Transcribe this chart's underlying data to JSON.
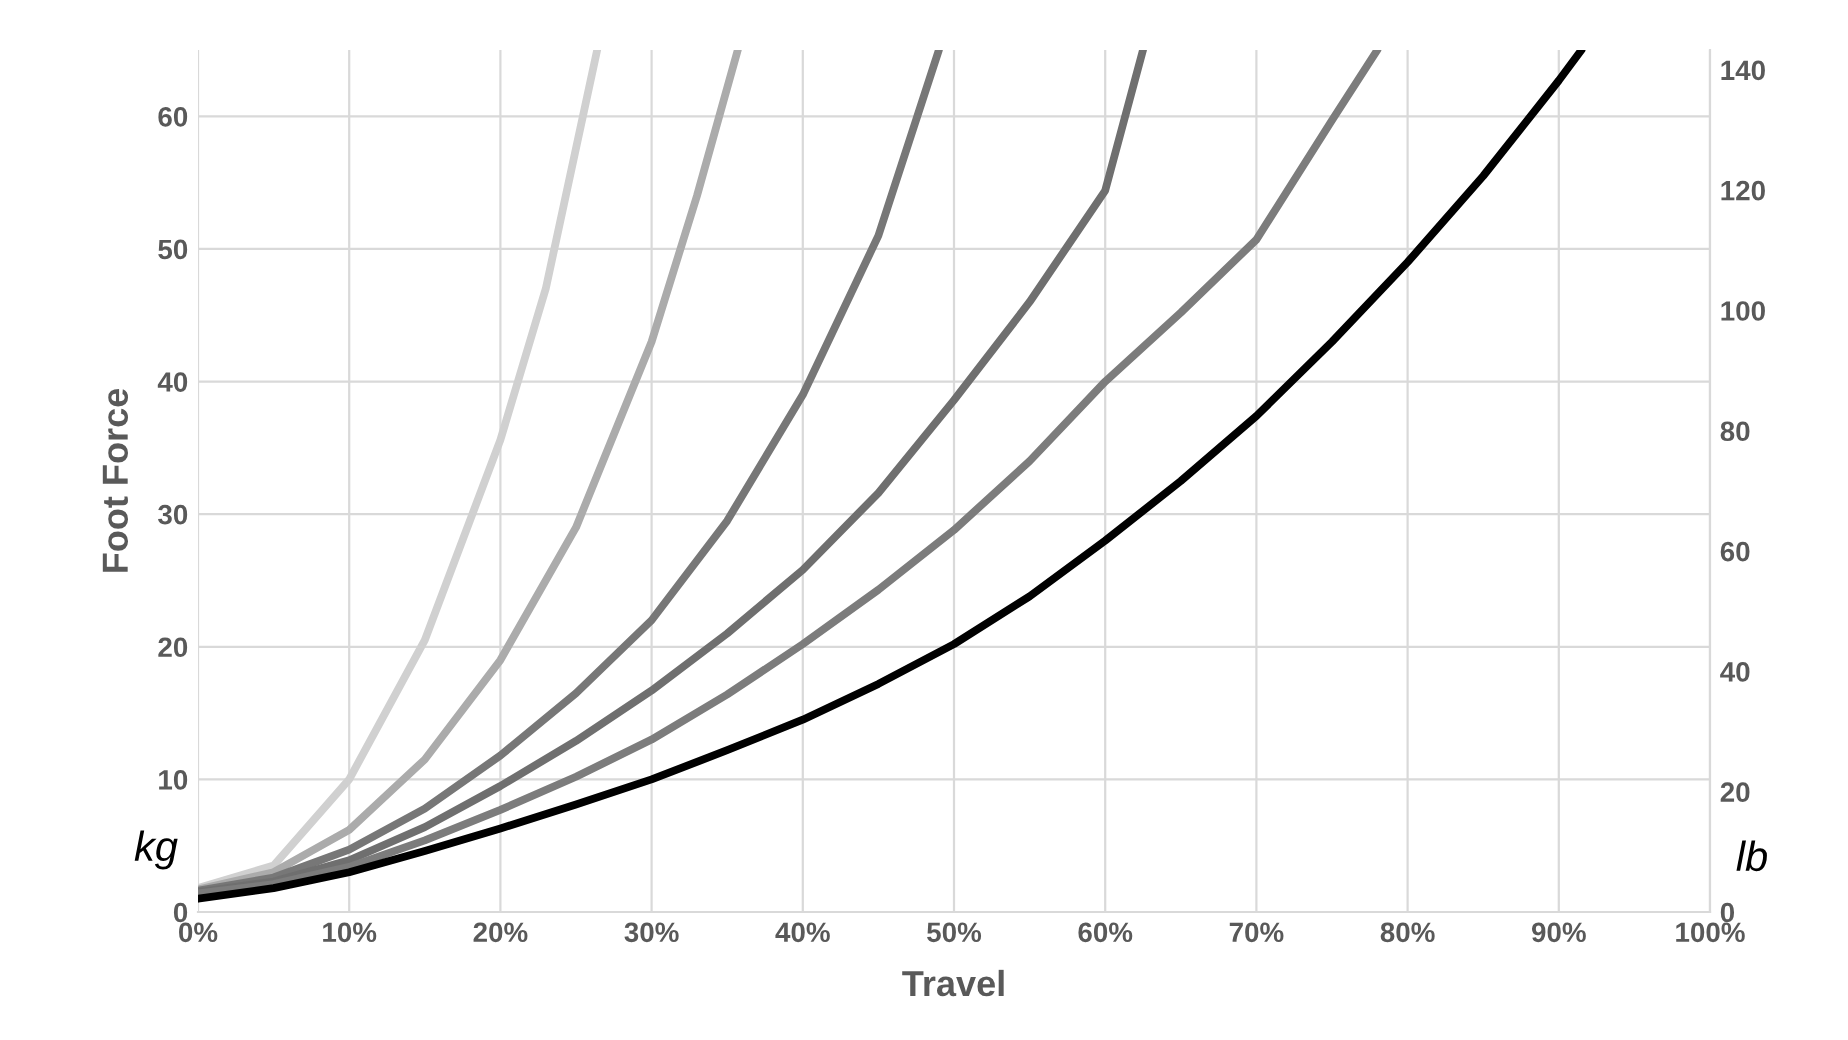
{
  "chart_data": {
    "type": "line",
    "xlabel": "Travel",
    "ylabel": "Foot Force",
    "xlim": [
      0,
      100
    ],
    "xticks": [
      {
        "value": 0,
        "label": "0%"
      },
      {
        "value": 10,
        "label": "10%"
      },
      {
        "value": 20,
        "label": "20%"
      },
      {
        "value": 30,
        "label": "30%"
      },
      {
        "value": 40,
        "label": "40%"
      },
      {
        "value": 50,
        "label": "50%"
      },
      {
        "value": 60,
        "label": "60%"
      },
      {
        "value": 70,
        "label": "70%"
      },
      {
        "value": 80,
        "label": "80%"
      },
      {
        "value": 90,
        "label": "90%"
      },
      {
        "value": 100,
        "label": "100%"
      }
    ],
    "ylim": [
      0,
      65
    ],
    "yticks": [
      0,
      10,
      20,
      30,
      40,
      50,
      60
    ],
    "y2lim": [
      0,
      143.3
    ],
    "y2ticks": [
      0,
      20,
      40,
      60,
      80,
      100,
      120,
      140
    ],
    "grid": true,
    "marker": "none",
    "line_style": "solid",
    "annotations": [
      {
        "text": "kg"
      },
      {
        "text": "lb"
      }
    ],
    "series": [
      {
        "color": "#d0d0d0",
        "x": [
          0,
          5,
          10,
          15,
          20,
          23,
          26.4
        ],
        "values": [
          1.8,
          3.5,
          10,
          20.5,
          35.6,
          47,
          65
        ]
      },
      {
        "color": "#ababab",
        "x": [
          0,
          5,
          10,
          15,
          20,
          25,
          30,
          33,
          35.7
        ],
        "values": [
          1.7,
          3,
          6.2,
          11.5,
          19,
          29,
          43,
          54,
          65
        ]
      },
      {
        "color": "#777777",
        "x": [
          0,
          5,
          10,
          15,
          20,
          25,
          30,
          35,
          40,
          45,
          49
        ],
        "values": [
          1.6,
          2.6,
          4.7,
          7.8,
          11.8,
          16.5,
          22,
          29.5,
          39,
          51,
          65
        ]
      },
      {
        "color": "#6f6f6f",
        "x": [
          0,
          5,
          10,
          15,
          20,
          25,
          30,
          35,
          40,
          45,
          50,
          55,
          60,
          62.5
        ],
        "values": [
          1.5,
          2.3,
          3.9,
          6.4,
          9.5,
          12.9,
          16.7,
          21,
          25.8,
          31.6,
          38.6,
          46,
          54.4,
          65
        ]
      },
      {
        "color": "#7c7c7c",
        "x": [
          0,
          5,
          10,
          15,
          20,
          25,
          30,
          35,
          40,
          45,
          50,
          55,
          60,
          65,
          70,
          75,
          78
        ],
        "values": [
          1.4,
          2.1,
          3.4,
          5.4,
          7.7,
          10.2,
          13,
          16.4,
          20.2,
          24.3,
          28.8,
          34,
          40,
          45.2,
          50.7,
          59.7,
          65
        ]
      },
      {
        "color": "#000000",
        "x": [
          0,
          5,
          10,
          15,
          20,
          25,
          30,
          35,
          40,
          45,
          50,
          55,
          60,
          65,
          70,
          75,
          80,
          85,
          90,
          91.5
        ],
        "values": [
          1.0,
          1.8,
          3.0,
          4.6,
          6.3,
          8.1,
          10,
          12.2,
          14.5,
          17.2,
          20.2,
          23.8,
          28,
          32.5,
          37.4,
          43,
          49,
          55.5,
          62.7,
          65
        ]
      }
    ]
  }
}
